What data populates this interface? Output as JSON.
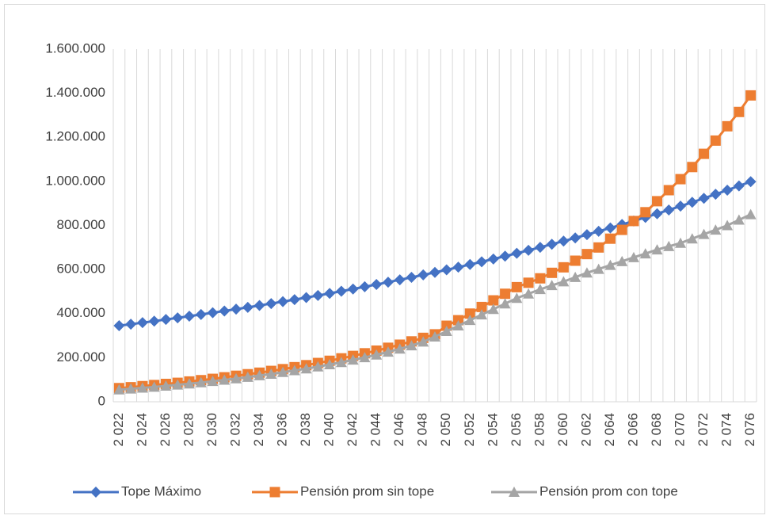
{
  "chart_data": {
    "type": "line",
    "categories": [
      "2 022",
      null,
      "2 024",
      null,
      "2 026",
      null,
      "2 028",
      null,
      "2 030",
      null,
      "2 032",
      null,
      "2 034",
      null,
      "2 036",
      null,
      "2 038",
      null,
      "2 040",
      null,
      "2 042",
      null,
      "2 044",
      null,
      "2 046",
      null,
      "2 048",
      null,
      "2 050",
      null,
      "2 052",
      null,
      "2 054",
      null,
      "2 056",
      null,
      "2 058",
      null,
      "2 060",
      null,
      "2 062",
      null,
      "2 064",
      null,
      "2 066",
      null,
      "2 068",
      null,
      "2 070",
      null,
      "2 072",
      null,
      "2 074",
      null,
      "2 076"
    ],
    "series": [
      {
        "name": "Tope Máximo",
        "color": "#4472c4",
        "marker": "diamond",
        "values": [
          345000,
          351900,
          358900,
          366000,
          373300,
          380700,
          388300,
          396000,
          403900,
          411900,
          420100,
          428400,
          436900,
          445600,
          454500,
          463500,
          472700,
          482100,
          491700,
          501500,
          511500,
          521700,
          532000,
          542600,
          553400,
          564400,
          575600,
          587000,
          598700,
          610600,
          622700,
          635100,
          647700,
          660600,
          673700,
          687100,
          700800,
          714700,
          728900,
          743400,
          758200,
          773300,
          788600,
          804300,
          820300,
          836600,
          853200,
          870200,
          887500,
          905100,
          923100,
          941500,
          960200,
          979300,
          998800
        ]
      },
      {
        "name": "Pensión prom sin tope",
        "color": "#ed7d31",
        "marker": "square",
        "values": [
          62000,
          66000,
          71000,
          76000,
          81000,
          86000,
          92000,
          98000,
          104000,
          111000,
          118000,
          125000,
          132000,
          140000,
          148000,
          157000,
          166000,
          176000,
          186000,
          197000,
          208000,
          220000,
          232000,
          245000,
          259000,
          274000,
          290000,
          306000,
          345000,
          370000,
          400000,
          430000,
          460000,
          490000,
          520000,
          540000,
          560000,
          585000,
          610000,
          640000,
          670000,
          700000,
          740000,
          780000,
          820000,
          860000,
          910000,
          960000,
          1010000,
          1065000,
          1125000,
          1185000,
          1250000,
          1315000,
          1390000
        ]
      },
      {
        "name": "Pensión prom con tope",
        "color": "#a5a5a5",
        "marker": "triangle",
        "values": [
          55000,
          59000,
          63000,
          67000,
          72000,
          77000,
          82000,
          87000,
          93000,
          99000,
          105000,
          112000,
          119000,
          126000,
          134000,
          142000,
          150000,
          159000,
          169000,
          179000,
          190000,
          201000,
          213000,
          226000,
          240000,
          255000,
          272000,
          295000,
          320000,
          345000,
          370000,
          395000,
          420000,
          445000,
          470000,
          490000,
          510000,
          528000,
          545000,
          565000,
          585000,
          602000,
          620000,
          637000,
          655000,
          672000,
          690000,
          705000,
          720000,
          740000,
          760000,
          780000,
          800000,
          825000,
          850000
        ]
      }
    ],
    "ylim": [
      0,
      1600000
    ],
    "yticks": [
      0,
      {
        "value": 200000,
        "label": "200.000"
      },
      {
        "value": 400000,
        "label": "400.000"
      },
      {
        "value": 600000,
        "label": "600.000"
      },
      {
        "value": 800000,
        "label": "800.000"
      },
      {
        "value": 1000000,
        "label": "1.000.000"
      },
      {
        "value": 1200000,
        "label": "1.200.000"
      },
      {
        "value": 1400000,
        "label": "1.400.000"
      },
      {
        "value": 1600000,
        "label": "1.600.000"
      }
    ],
    "grid": "vertical",
    "legend": "bottom"
  }
}
